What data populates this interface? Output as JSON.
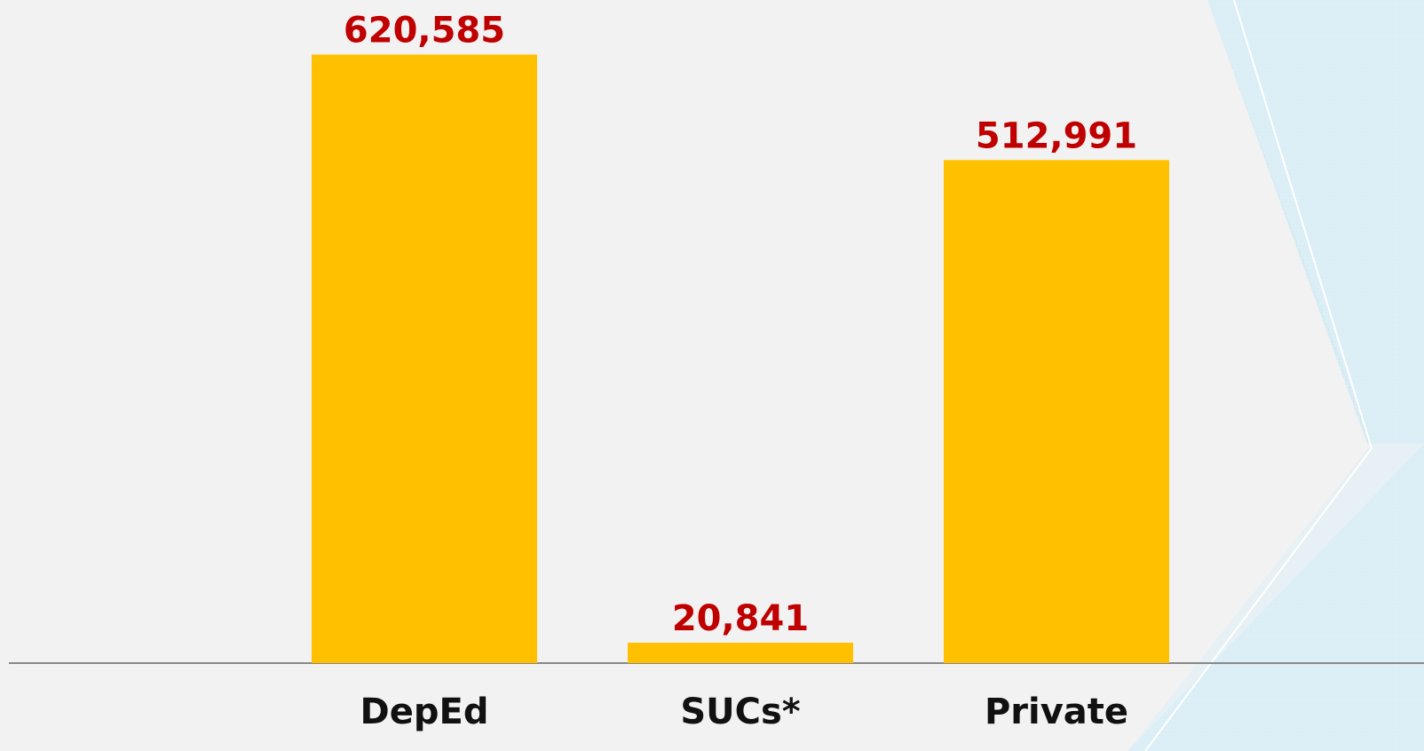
{
  "chart_data": {
    "type": "bar",
    "categories": [
      "DepEd",
      "SUCs*",
      "Private"
    ],
    "values": [
      620585,
      20841,
      512991
    ],
    "value_labels": [
      "620,585",
      "20,841",
      "512,991"
    ],
    "color": "#ffc000",
    "ylim": [
      0,
      640000
    ],
    "grid": false
  }
}
